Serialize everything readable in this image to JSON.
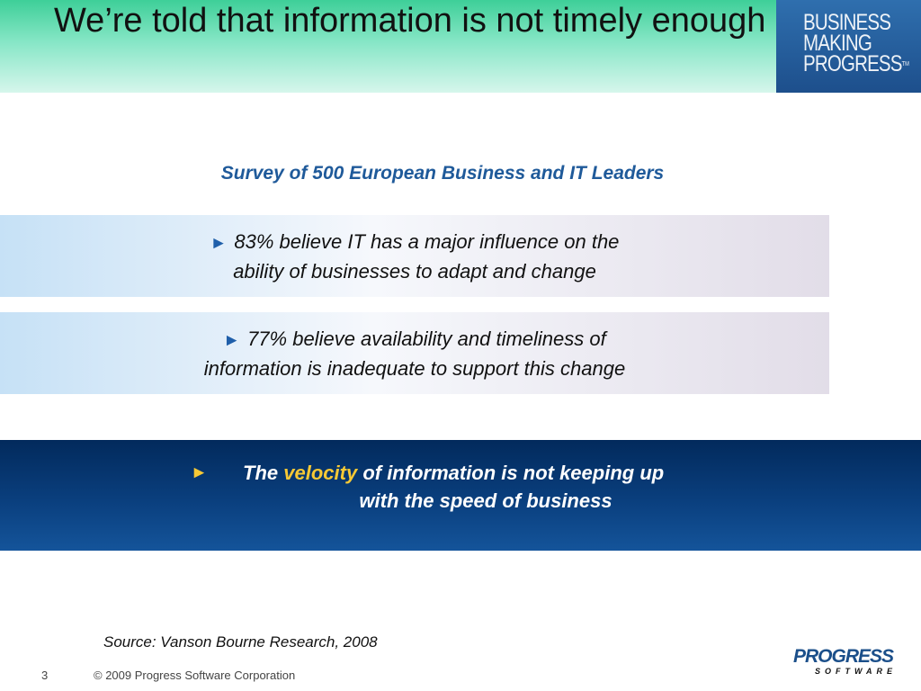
{
  "slide": {
    "title": "We’re told that information is not timely enough",
    "subtitle": "Survey of 500 European Business and IT Leaders",
    "stats": [
      {
        "line1": "83% believe IT has a major influence on the",
        "line2": "ability of businesses to adapt and change"
      },
      {
        "line1": "77% believe availability and timeliness of",
        "line2": "information is inadequate to support this change"
      }
    ],
    "callout": {
      "before": "The",
      "highlight": "velocity",
      "after": "of information is not keeping up",
      "line2": "with the speed of business"
    },
    "source": "Source: Vanson Bourne Research, 2008",
    "page_number": "3",
    "copyright": "© 2009 Progress Software Corporation"
  },
  "brand_badge": {
    "line1": "BUSINESS",
    "line2": "MAKING",
    "line3": "PROGRESS",
    "trademark": "TM"
  },
  "company_logo": {
    "name": "PROGRESS",
    "sub": "SOFTWARE"
  },
  "icons": {
    "bullet": "triangle-right-icon",
    "bullet_glyph": "►"
  },
  "colors": {
    "header_green": "#3ecf98",
    "subtitle_blue": "#1f5a9a",
    "callout_navy": "#0a3f7e",
    "highlight_yellow": "#f7c935",
    "brand_blue": "#1d4f8c"
  }
}
